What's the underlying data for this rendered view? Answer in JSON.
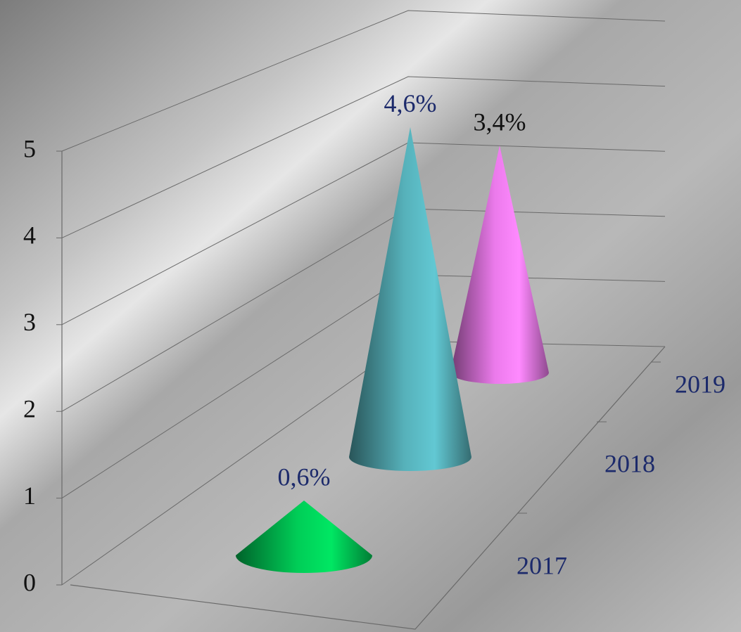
{
  "chart_data": {
    "type": "cone3d",
    "categories": [
      "2017",
      "2018",
      "2019"
    ],
    "series": [
      {
        "values": [
          0.6,
          4.6,
          3.4
        ],
        "value_labels": [
          "0,6%",
          "4,6%",
          "3,4%"
        ],
        "colors": [
          "#00b24c",
          "#4b9aa2",
          "#cc6acc"
        ],
        "label_colors": [
          "#1c2a6b",
          "#1c2a6b",
          "#111111"
        ]
      }
    ],
    "ylim": [
      0,
      5
    ],
    "yticks": [
      0,
      1,
      2,
      3,
      4,
      5
    ],
    "grid": true,
    "category_label_color": "#1c2a6b"
  }
}
